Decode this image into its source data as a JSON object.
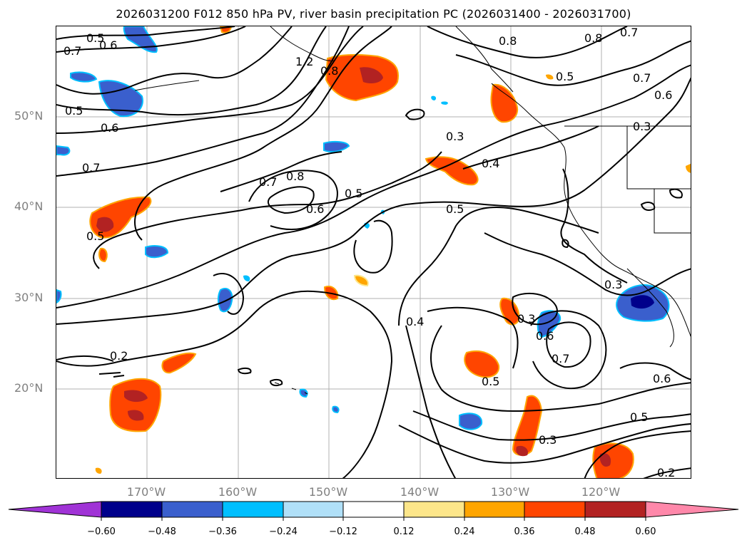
{
  "title": "2026031200 F012 850 hPa PV, river basin precipitation PC (2026031400 - 2026031700)",
  "axes": {
    "lat_ticks": [
      "50°N",
      "40°N",
      "30°N",
      "20°N"
    ],
    "lon_ticks": [
      "170°W",
      "160°W",
      "150°W",
      "140°W",
      "130°W",
      "120°W"
    ]
  },
  "contour_labels": [
    "0.5",
    "0.6",
    "0.7",
    "1.2",
    "0.8",
    "0.8",
    "0.8",
    "0.7",
    "0.5",
    "0.7",
    "0.6",
    "0.5",
    "0.6",
    "0.7",
    "0.3",
    "0.7",
    "0.8",
    "0.4",
    "0.5",
    "0.6",
    "0.5",
    "0.3",
    "0.5",
    "0.3",
    "0.4",
    "0.3",
    "0.6",
    "0.7",
    "0.2",
    "0.5",
    "0.6",
    "0.5",
    "0.3",
    "0.2"
  ],
  "colorbar": {
    "tick_labels": [
      "−0.60",
      "−0.48",
      "−0.36",
      "−0.24",
      "−0.12",
      "0.12",
      "0.24",
      "0.36",
      "0.48",
      "0.60"
    ],
    "colors": [
      "#a033d6",
      "#00008b",
      "#3a5fcd",
      "#00bfff",
      "#b0e0f8",
      "#ffffff",
      "#fde68a",
      "#ffa500",
      "#ff4500",
      "#b22222",
      "#ff88aa"
    ]
  }
}
